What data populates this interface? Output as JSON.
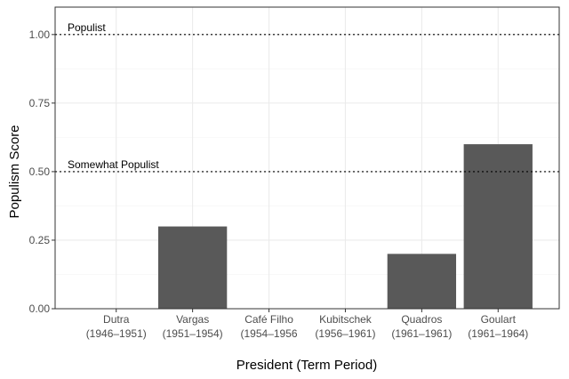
{
  "chart_data": {
    "type": "bar",
    "title": "",
    "xlabel": "President (Term Period)",
    "ylabel": "Populism Score",
    "ylim": [
      0,
      1.1
    ],
    "yticks": [
      "0.00",
      "0.25",
      "0.50",
      "0.75",
      "1.00"
    ],
    "ytick_values": [
      0,
      0.25,
      0.5,
      0.75,
      1.0
    ],
    "categories": [
      {
        "name": "Dutra",
        "term": "(1946–1951)"
      },
      {
        "name": "Vargas",
        "term": "(1951–1954)"
      },
      {
        "name": "Café Filho",
        "term": "(1954–1956"
      },
      {
        "name": "Kubitschek",
        "term": "(1956–1961)"
      },
      {
        "name": "Quadros",
        "term": "(1961–1961)"
      },
      {
        "name": "Goulart",
        "term": "(1961–1964)"
      }
    ],
    "values": [
      0,
      0.3,
      0,
      0,
      0.2,
      0.6
    ],
    "reference_lines": [
      {
        "value": 1.0,
        "label": "Populist"
      },
      {
        "value": 0.5,
        "label": "Somewhat Populist"
      }
    ],
    "grid": true,
    "bar_color": "#595959",
    "grid_color": "#ebebeb"
  }
}
